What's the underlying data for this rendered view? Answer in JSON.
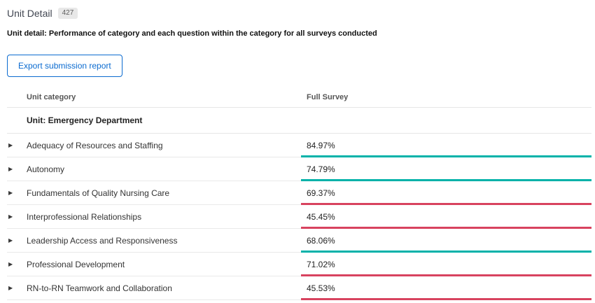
{
  "page": {
    "title": "Unit Detail",
    "badge": "427",
    "description": "Unit detail: Performance of category and each question within the category for all surveys conducted"
  },
  "toolbar": {
    "export_button": "Export submission report"
  },
  "icons": {
    "expand_caret": "▶"
  },
  "colors": {
    "positive_teal": "#00b2a9",
    "negative_red": "#d8435f",
    "button_blue": "#0b6bd0"
  },
  "table": {
    "columns": [
      "Unit category",
      "Full Survey"
    ],
    "group_label": "Unit: Emergency Department",
    "rows": [
      {
        "category": "Adequacy of Resources and Staffing",
        "value": "84.97%",
        "bar_class": "bar teal"
      },
      {
        "category": "Autonomy",
        "value": "74.79%",
        "bar_class": "bar teal"
      },
      {
        "category": "Fundamentals of Quality Nursing Care",
        "value": "69.37%",
        "bar_class": "bar red"
      },
      {
        "category": "Interprofessional Relationships",
        "value": "45.45%",
        "bar_class": "bar red"
      },
      {
        "category": "Leadership Access and Responsiveness",
        "value": "68.06%",
        "bar_class": "bar teal"
      },
      {
        "category": "Professional Development",
        "value": "71.02%",
        "bar_class": "bar red"
      },
      {
        "category": "RN-to-RN Teamwork and Collaboration",
        "value": "45.53%",
        "bar_class": "bar red"
      }
    ]
  }
}
